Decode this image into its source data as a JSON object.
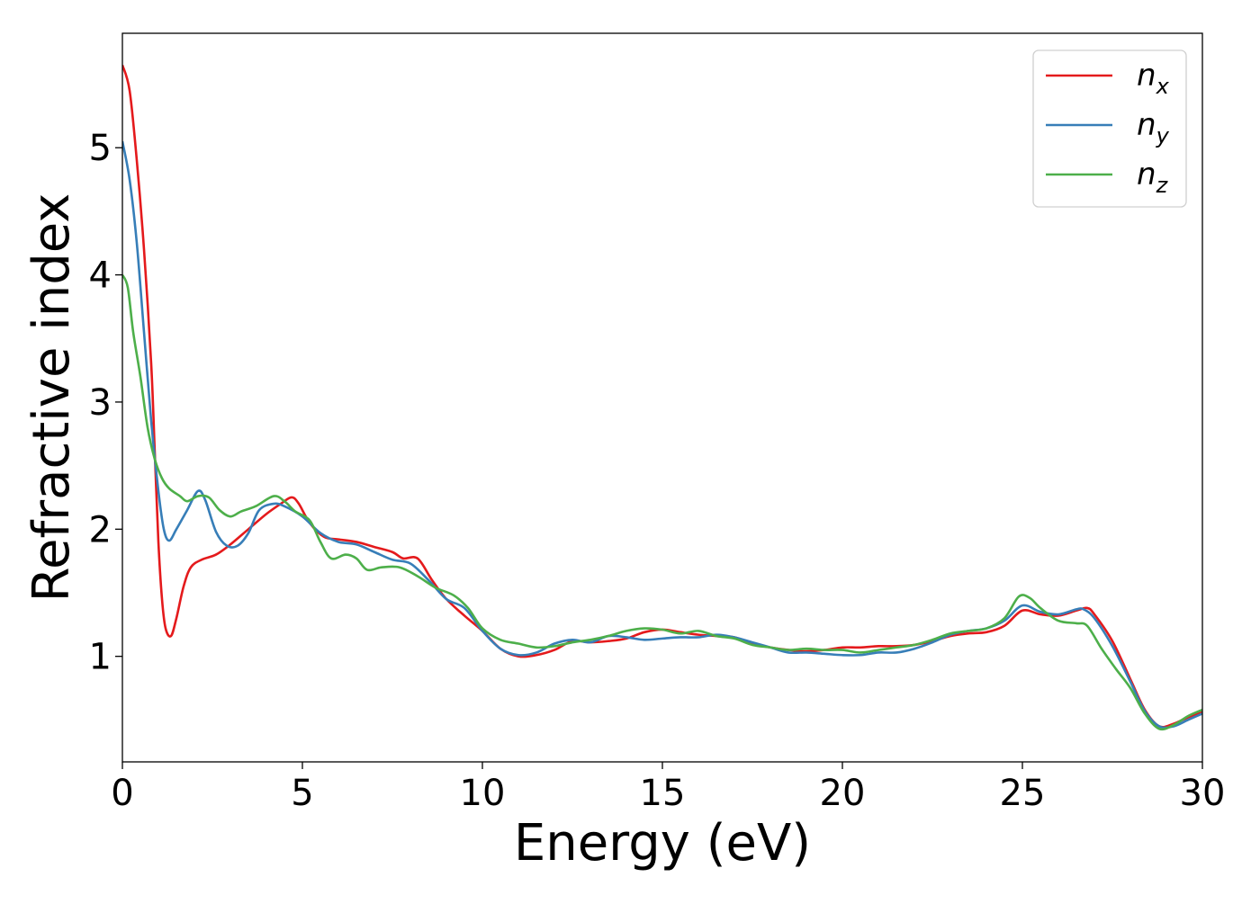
{
  "chart_data": {
    "type": "line",
    "title": "",
    "xlabel": "Energy (eV)",
    "ylabel": "Refractive index",
    "xlim": [
      0,
      30
    ],
    "ylim": [
      0.17,
      5.9
    ],
    "xticks": [
      0,
      5,
      10,
      15,
      20,
      25,
      30
    ],
    "yticks": [
      1,
      2,
      3,
      4,
      5
    ],
    "grid": false,
    "legend": "top-right",
    "series": [
      {
        "name": "n_x",
        "label_main": "n",
        "label_sub": "x",
        "color": "#e41a1c",
        "points": [
          [
            0,
            5.65
          ],
          [
            0.2,
            5.45
          ],
          [
            0.4,
            4.9
          ],
          [
            0.6,
            4.2
          ],
          [
            0.8,
            3.3
          ],
          [
            0.9,
            2.6
          ],
          [
            1.0,
            1.9
          ],
          [
            1.1,
            1.45
          ],
          [
            1.2,
            1.22
          ],
          [
            1.35,
            1.16
          ],
          [
            1.5,
            1.3
          ],
          [
            1.7,
            1.55
          ],
          [
            1.9,
            1.7
          ],
          [
            2.2,
            1.76
          ],
          [
            2.6,
            1.8
          ],
          [
            3.0,
            1.88
          ],
          [
            3.5,
            2.0
          ],
          [
            4.0,
            2.12
          ],
          [
            4.4,
            2.2
          ],
          [
            4.7,
            2.25
          ],
          [
            4.9,
            2.2
          ],
          [
            5.2,
            2.05
          ],
          [
            5.6,
            1.94
          ],
          [
            6.0,
            1.92
          ],
          [
            6.5,
            1.9
          ],
          [
            7.0,
            1.86
          ],
          [
            7.5,
            1.82
          ],
          [
            7.8,
            1.77
          ],
          [
            8.2,
            1.77
          ],
          [
            8.6,
            1.6
          ],
          [
            9.0,
            1.45
          ],
          [
            9.5,
            1.32
          ],
          [
            10.0,
            1.2
          ],
          [
            10.5,
            1.06
          ],
          [
            11.0,
            1.0
          ],
          [
            11.5,
            1.01
          ],
          [
            12.0,
            1.05
          ],
          [
            12.5,
            1.12
          ],
          [
            13.0,
            1.11
          ],
          [
            13.5,
            1.12
          ],
          [
            14.0,
            1.14
          ],
          [
            14.5,
            1.19
          ],
          [
            15.0,
            1.21
          ],
          [
            15.5,
            1.19
          ],
          [
            16.0,
            1.17
          ],
          [
            16.5,
            1.16
          ],
          [
            17.0,
            1.15
          ],
          [
            17.5,
            1.1
          ],
          [
            18.0,
            1.07
          ],
          [
            18.5,
            1.05
          ],
          [
            19.0,
            1.04
          ],
          [
            19.5,
            1.05
          ],
          [
            20.0,
            1.07
          ],
          [
            20.5,
            1.07
          ],
          [
            21.0,
            1.08
          ],
          [
            21.5,
            1.08
          ],
          [
            22.0,
            1.09
          ],
          [
            22.5,
            1.12
          ],
          [
            23.0,
            1.16
          ],
          [
            23.5,
            1.18
          ],
          [
            24.0,
            1.19
          ],
          [
            24.5,
            1.24
          ],
          [
            25.0,
            1.36
          ],
          [
            25.5,
            1.33
          ],
          [
            26.0,
            1.32
          ],
          [
            26.5,
            1.36
          ],
          [
            26.8,
            1.38
          ],
          [
            27.0,
            1.33
          ],
          [
            27.5,
            1.12
          ],
          [
            28.0,
            0.82
          ],
          [
            28.4,
            0.58
          ],
          [
            28.8,
            0.45
          ],
          [
            29.2,
            0.47
          ],
          [
            29.6,
            0.52
          ],
          [
            30.0,
            0.56
          ]
        ]
      },
      {
        "name": "n_y",
        "label_main": "n",
        "label_sub": "y",
        "color": "#377eb8",
        "points": [
          [
            0,
            5.05
          ],
          [
            0.2,
            4.75
          ],
          [
            0.4,
            4.25
          ],
          [
            0.6,
            3.55
          ],
          [
            0.8,
            2.85
          ],
          [
            1.0,
            2.3
          ],
          [
            1.15,
            2.0
          ],
          [
            1.3,
            1.91
          ],
          [
            1.5,
            2.0
          ],
          [
            1.8,
            2.15
          ],
          [
            2.1,
            2.3
          ],
          [
            2.3,
            2.23
          ],
          [
            2.6,
            1.98
          ],
          [
            2.9,
            1.87
          ],
          [
            3.2,
            1.87
          ],
          [
            3.5,
            1.97
          ],
          [
            3.8,
            2.15
          ],
          [
            4.2,
            2.2
          ],
          [
            4.5,
            2.18
          ],
          [
            5.0,
            2.1
          ],
          [
            5.5,
            1.97
          ],
          [
            6.0,
            1.9
          ],
          [
            6.5,
            1.88
          ],
          [
            7.0,
            1.82
          ],
          [
            7.5,
            1.76
          ],
          [
            8.0,
            1.73
          ],
          [
            8.5,
            1.6
          ],
          [
            9.0,
            1.45
          ],
          [
            9.5,
            1.38
          ],
          [
            10.0,
            1.2
          ],
          [
            10.5,
            1.06
          ],
          [
            11.0,
            1.01
          ],
          [
            11.5,
            1.03
          ],
          [
            12.0,
            1.1
          ],
          [
            12.5,
            1.13
          ],
          [
            13.0,
            1.11
          ],
          [
            13.5,
            1.16
          ],
          [
            14.0,
            1.15
          ],
          [
            14.5,
            1.13
          ],
          [
            15.0,
            1.14
          ],
          [
            15.5,
            1.15
          ],
          [
            16.0,
            1.15
          ],
          [
            16.5,
            1.17
          ],
          [
            17.0,
            1.15
          ],
          [
            17.5,
            1.11
          ],
          [
            18.0,
            1.07
          ],
          [
            18.5,
            1.03
          ],
          [
            19.0,
            1.03
          ],
          [
            19.5,
            1.02
          ],
          [
            20.0,
            1.01
          ],
          [
            20.5,
            1.01
          ],
          [
            21.0,
            1.03
          ],
          [
            21.5,
            1.03
          ],
          [
            22.0,
            1.06
          ],
          [
            22.5,
            1.11
          ],
          [
            23.0,
            1.17
          ],
          [
            23.5,
            1.2
          ],
          [
            24.0,
            1.22
          ],
          [
            24.5,
            1.28
          ],
          [
            25.0,
            1.4
          ],
          [
            25.5,
            1.35
          ],
          [
            26.0,
            1.33
          ],
          [
            26.5,
            1.37
          ],
          [
            26.7,
            1.37
          ],
          [
            27.0,
            1.3
          ],
          [
            27.5,
            1.08
          ],
          [
            28.0,
            0.8
          ],
          [
            28.4,
            0.57
          ],
          [
            28.8,
            0.45
          ],
          [
            29.2,
            0.45
          ],
          [
            29.6,
            0.5
          ],
          [
            30.0,
            0.55
          ]
        ]
      },
      {
        "name": "n_z",
        "label_main": "n",
        "label_sub": "z",
        "color": "#4daf4a",
        "points": [
          [
            0,
            4.0
          ],
          [
            0.15,
            3.9
          ],
          [
            0.3,
            3.55
          ],
          [
            0.5,
            3.2
          ],
          [
            0.7,
            2.8
          ],
          [
            0.9,
            2.55
          ],
          [
            1.1,
            2.4
          ],
          [
            1.3,
            2.32
          ],
          [
            1.6,
            2.26
          ],
          [
            1.8,
            2.22
          ],
          [
            2.1,
            2.26
          ],
          [
            2.4,
            2.25
          ],
          [
            2.7,
            2.15
          ],
          [
            3.0,
            2.1
          ],
          [
            3.3,
            2.14
          ],
          [
            3.7,
            2.18
          ],
          [
            4.2,
            2.26
          ],
          [
            4.5,
            2.22
          ],
          [
            4.8,
            2.14
          ],
          [
            5.2,
            2.07
          ],
          [
            5.5,
            1.9
          ],
          [
            5.8,
            1.77
          ],
          [
            6.2,
            1.8
          ],
          [
            6.5,
            1.77
          ],
          [
            6.8,
            1.68
          ],
          [
            7.2,
            1.7
          ],
          [
            7.7,
            1.7
          ],
          [
            8.2,
            1.63
          ],
          [
            8.7,
            1.54
          ],
          [
            9.2,
            1.48
          ],
          [
            9.6,
            1.38
          ],
          [
            10.0,
            1.22
          ],
          [
            10.5,
            1.13
          ],
          [
            11.0,
            1.1
          ],
          [
            11.5,
            1.07
          ],
          [
            12.0,
            1.08
          ],
          [
            12.5,
            1.11
          ],
          [
            13.0,
            1.13
          ],
          [
            13.5,
            1.16
          ],
          [
            14.0,
            1.2
          ],
          [
            14.5,
            1.22
          ],
          [
            15.0,
            1.21
          ],
          [
            15.5,
            1.18
          ],
          [
            16.0,
            1.2
          ],
          [
            16.5,
            1.16
          ],
          [
            17.0,
            1.14
          ],
          [
            17.5,
            1.09
          ],
          [
            18.0,
            1.07
          ],
          [
            18.5,
            1.05
          ],
          [
            19.0,
            1.06
          ],
          [
            19.5,
            1.05
          ],
          [
            20.0,
            1.05
          ],
          [
            20.5,
            1.03
          ],
          [
            21.0,
            1.05
          ],
          [
            21.5,
            1.07
          ],
          [
            22.0,
            1.09
          ],
          [
            22.5,
            1.13
          ],
          [
            23.0,
            1.18
          ],
          [
            23.5,
            1.2
          ],
          [
            24.0,
            1.22
          ],
          [
            24.5,
            1.3
          ],
          [
            24.9,
            1.47
          ],
          [
            25.2,
            1.46
          ],
          [
            25.5,
            1.38
          ],
          [
            26.0,
            1.28
          ],
          [
            26.5,
            1.26
          ],
          [
            26.8,
            1.24
          ],
          [
            27.2,
            1.06
          ],
          [
            27.6,
            0.9
          ],
          [
            28.0,
            0.75
          ],
          [
            28.4,
            0.55
          ],
          [
            28.8,
            0.43
          ],
          [
            29.2,
            0.46
          ],
          [
            29.6,
            0.53
          ],
          [
            30.0,
            0.58
          ]
        ]
      }
    ]
  }
}
